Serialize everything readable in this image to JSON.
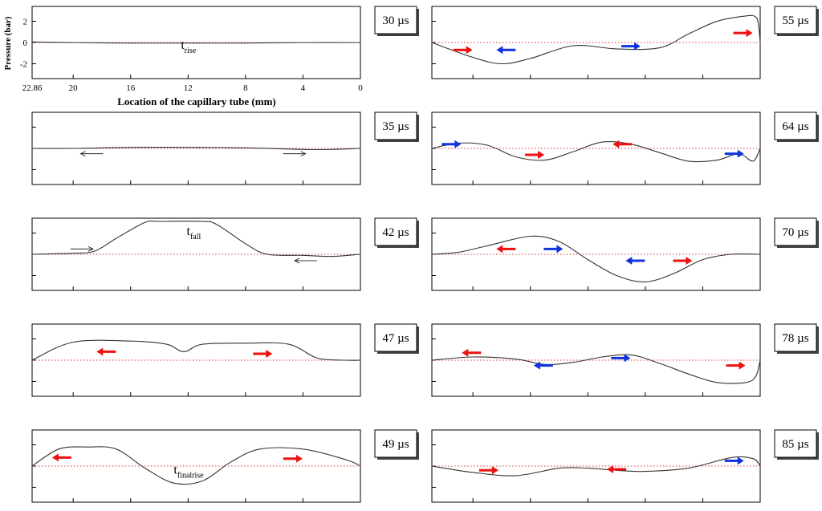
{
  "figure": {
    "type": "multi-panel line plot",
    "shared_y_axis": {
      "label": "Pressure (bar)",
      "ticks": [
        2,
        0,
        -2
      ],
      "ylim": [
        -3.4,
        3.4
      ]
    },
    "shared_x_axis": {
      "label": "Location of the capillary tube (mm)",
      "ticks": [
        22.86,
        20,
        16,
        12,
        8,
        4,
        0
      ],
      "xlim": [
        22.86,
        0
      ],
      "reversed": true
    },
    "zero_line_color": "#e03030",
    "curve_color": "#333333",
    "arrow_colors": {
      "red": "#ee1111",
      "blue": "#1133dd",
      "black": "#222222"
    }
  },
  "chart_data": [
    {
      "type": "line",
      "time_label": "30 µs",
      "x": [
        22.86,
        20,
        16,
        12,
        8,
        4,
        0
      ],
      "y": [
        0.05,
        0.0,
        -0.05,
        -0.05,
        -0.05,
        0.0,
        0.0
      ],
      "annotations": [
        {
          "text": "t",
          "sub": "rise",
          "x": 12.5,
          "y": -0.6
        }
      ],
      "arrows": []
    },
    {
      "type": "line",
      "time_label": "55 µs",
      "x": [
        22.86,
        20,
        18,
        16,
        13,
        10,
        7,
        5,
        3,
        1,
        0.3,
        0.1,
        0
      ],
      "y": [
        0.0,
        -1.4,
        -2.0,
        -1.5,
        -0.3,
        -0.6,
        -0.5,
        0.8,
        2.0,
        2.5,
        2.4,
        1.5,
        0.0
      ],
      "annotations": [],
      "arrows": [
        {
          "x": 20.7,
          "y": -0.7,
          "dir": "right",
          "color": "red"
        },
        {
          "x": 17.7,
          "y": -0.7,
          "dir": "left",
          "color": "blue"
        },
        {
          "x": 9.0,
          "y": -0.35,
          "dir": "right",
          "color": "blue"
        },
        {
          "x": 1.2,
          "y": 0.9,
          "dir": "right",
          "color": "red"
        }
      ]
    },
    {
      "type": "line",
      "time_label": "35 µs",
      "x": [
        22.86,
        20,
        16,
        12,
        8,
        4,
        2,
        0
      ],
      "y": [
        0.0,
        0.0,
        0.1,
        0.1,
        0.05,
        -0.1,
        -0.1,
        0.0
      ],
      "annotations": [],
      "arrows": [
        {
          "x": 18.7,
          "y": -0.5,
          "dir": "left",
          "color": "black"
        },
        {
          "x": 4.6,
          "y": -0.5,
          "dir": "right",
          "color": "black"
        }
      ]
    },
    {
      "type": "line",
      "time_label": "64 µs",
      "x": [
        22.86,
        21,
        19,
        17,
        15,
        13,
        11,
        9,
        7,
        5,
        3,
        1.5,
        0.5,
        0
      ],
      "y": [
        0.0,
        0.5,
        0.3,
        -0.8,
        -1.1,
        -0.3,
        0.6,
        0.4,
        -0.4,
        -1.2,
        -1.1,
        -0.5,
        -1.2,
        0.0
      ],
      "annotations": [],
      "arrows": [
        {
          "x": 21.5,
          "y": 0.4,
          "dir": "right",
          "color": "blue"
        },
        {
          "x": 15.7,
          "y": -0.6,
          "dir": "right",
          "color": "red"
        },
        {
          "x": 9.6,
          "y": 0.4,
          "dir": "left",
          "color": "red"
        },
        {
          "x": 1.8,
          "y": -0.5,
          "dir": "right",
          "color": "blue"
        }
      ]
    },
    {
      "type": "line",
      "time_label": "42 µs",
      "x": [
        22.86,
        20,
        18.5,
        17,
        15,
        14,
        11,
        10,
        8,
        6.5,
        4,
        2,
        0
      ],
      "y": [
        0.0,
        0.1,
        0.3,
        1.5,
        3.0,
        3.1,
        3.1,
        2.8,
        1.0,
        0.0,
        -0.1,
        -0.2,
        0.0
      ],
      "annotations": [
        {
          "text": "t",
          "sub": "fall",
          "x": 12.1,
          "y": 1.8
        }
      ],
      "arrows": [
        {
          "x": 19.4,
          "y": 0.5,
          "dir": "right",
          "color": "black"
        },
        {
          "x": 3.8,
          "y": -0.6,
          "dir": "left",
          "color": "black"
        }
      ]
    },
    {
      "type": "line",
      "time_label": "70 µs",
      "x": [
        22.86,
        21,
        19,
        16,
        14,
        12,
        10,
        8,
        6,
        4,
        2,
        0
      ],
      "y": [
        0.0,
        0.2,
        0.8,
        1.7,
        1.2,
        -0.5,
        -2.0,
        -2.6,
        -1.8,
        -0.5,
        0.0,
        0.0
      ],
      "annotations": [],
      "arrows": [
        {
          "x": 17.7,
          "y": 0.5,
          "dir": "left",
          "color": "red"
        },
        {
          "x": 14.4,
          "y": 0.5,
          "dir": "right",
          "color": "blue"
        },
        {
          "x": 8.7,
          "y": -0.6,
          "dir": "left",
          "color": "blue"
        },
        {
          "x": 5.4,
          "y": -0.6,
          "dir": "right",
          "color": "red"
        }
      ]
    },
    {
      "type": "line",
      "time_label": "47 µs",
      "x": [
        22.86,
        20,
        16,
        13.5,
        12.3,
        11,
        8,
        5,
        3,
        1,
        0
      ],
      "y": [
        0.0,
        1.7,
        1.8,
        1.5,
        0.8,
        1.5,
        1.6,
        1.5,
        0.2,
        0.0,
        0.0
      ],
      "annotations": [],
      "arrows": [
        {
          "x": 17.7,
          "y": 0.8,
          "dir": "left",
          "color": "red"
        },
        {
          "x": 6.8,
          "y": 0.6,
          "dir": "right",
          "color": "red"
        }
      ]
    },
    {
      "type": "line",
      "time_label": "78 µs",
      "x": [
        22.86,
        20,
        17,
        15,
        13,
        11,
        9,
        7,
        5,
        3,
        1,
        0.3,
        0
      ],
      "y": [
        0.0,
        0.3,
        0.1,
        -0.4,
        -0.2,
        0.3,
        0.5,
        -0.3,
        -1.3,
        -2.1,
        -2.1,
        -1.5,
        0.0
      ],
      "annotations": [],
      "arrows": [
        {
          "x": 20.1,
          "y": 0.7,
          "dir": "left",
          "color": "red"
        },
        {
          "x": 15.1,
          "y": -0.5,
          "dir": "left",
          "color": "blue"
        },
        {
          "x": 9.7,
          "y": 0.2,
          "dir": "right",
          "color": "blue"
        },
        {
          "x": 1.7,
          "y": -0.5,
          "dir": "right",
          "color": "red"
        }
      ]
    },
    {
      "type": "line",
      "time_label": "49 µs",
      "x": [
        22.86,
        21,
        19,
        17,
        15,
        13,
        11,
        9,
        7,
        4,
        1,
        0
      ],
      "y": [
        0.0,
        1.6,
        1.8,
        1.6,
        -0.2,
        -1.6,
        -1.4,
        0.4,
        1.6,
        1.6,
        0.6,
        0.0
      ],
      "annotations": [
        {
          "text": "t",
          "sub": "finalrise",
          "x": 13.0,
          "y": -0.7
        }
      ],
      "arrows": [
        {
          "x": 20.8,
          "y": 0.8,
          "dir": "left",
          "color": "red"
        },
        {
          "x": 4.7,
          "y": 0.7,
          "dir": "right",
          "color": "red"
        }
      ]
    },
    {
      "type": "line",
      "time_label": "85 µs",
      "x": [
        22.86,
        20,
        17,
        14,
        12,
        10,
        8,
        5,
        2,
        0.5,
        0
      ],
      "y": [
        0.0,
        -0.6,
        -0.9,
        -0.2,
        -0.2,
        -0.4,
        -0.5,
        -0.2,
        0.8,
        0.7,
        0.0
      ],
      "annotations": [],
      "arrows": [
        {
          "x": 18.9,
          "y": -0.4,
          "dir": "right",
          "color": "red"
        },
        {
          "x": 10.0,
          "y": -0.3,
          "dir": "left",
          "color": "red"
        },
        {
          "x": 1.8,
          "y": 0.5,
          "dir": "right",
          "color": "blue"
        }
      ]
    }
  ]
}
